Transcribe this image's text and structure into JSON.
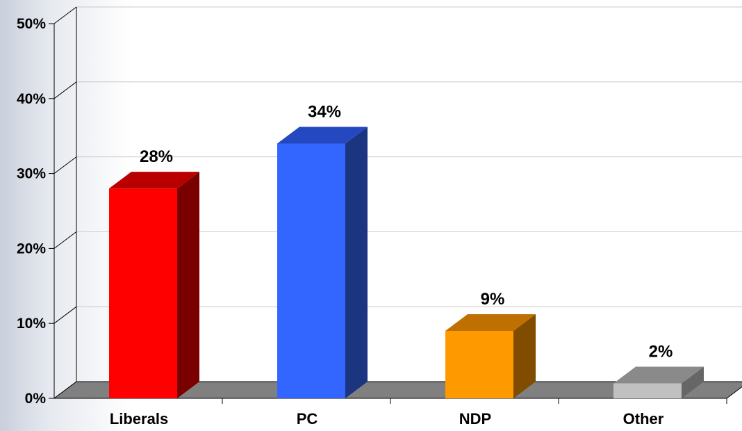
{
  "chart_data": {
    "type": "bar",
    "categories": [
      "Liberals",
      "PC",
      "NDP",
      "Other"
    ],
    "values": [
      28,
      34,
      9,
      2
    ],
    "data_labels": [
      "28%",
      "34%",
      "9%",
      "2%"
    ],
    "y_ticks": [
      "0%",
      "10%",
      "20%",
      "30%",
      "40%",
      "50%"
    ],
    "ylim": [
      0,
      50
    ],
    "grid": true,
    "style": "3d",
    "colors": {
      "Liberals": {
        "front": "#ff0000",
        "top": "#b80000",
        "side": "#7a0000"
      },
      "PC": {
        "front": "#3366ff",
        "top": "#2448c0",
        "side": "#1c3580"
      },
      "NDP": {
        "front": "#ff9900",
        "top": "#c07000",
        "side": "#7f4c00"
      },
      "Other": {
        "front": "#c0c0c0",
        "top": "#8a8a8a",
        "side": "#666666"
      },
      "floor": "#808080",
      "gridline": "#c8c8c8"
    }
  }
}
